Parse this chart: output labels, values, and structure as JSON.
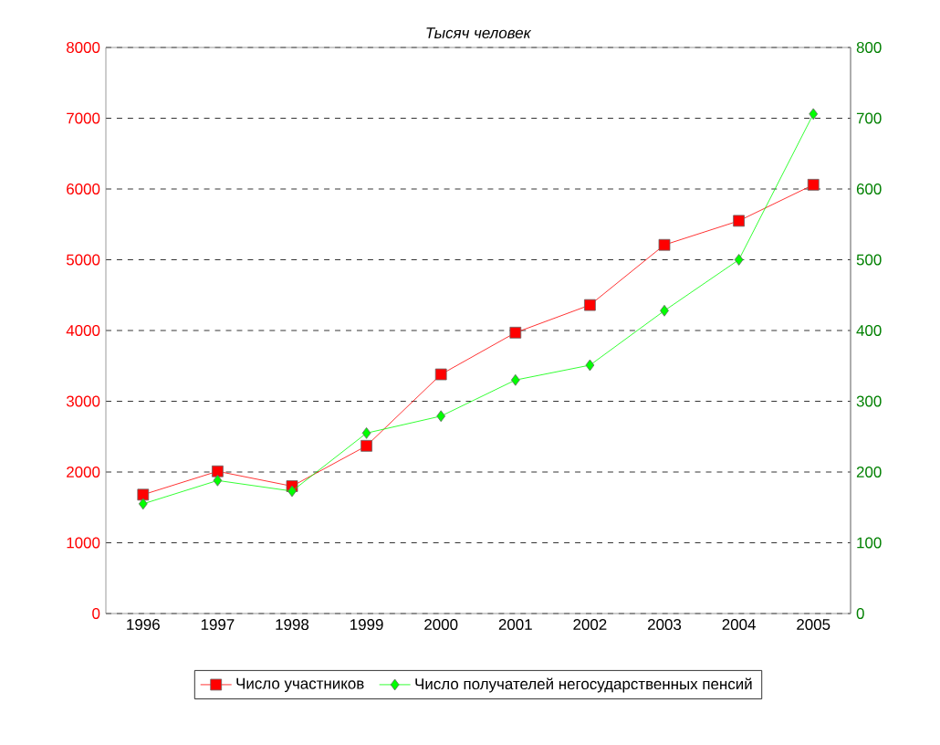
{
  "chart_data": {
    "type": "line",
    "title": "*Тысяч человек*",
    "categories": [
      "1996",
      "1997",
      "1998",
      "1999",
      "2000",
      "2001",
      "2002",
      "2003",
      "2004",
      "2005"
    ],
    "series": [
      {
        "name": "Число участников",
        "color": "#ff0000",
        "marker": "square",
        "values": [
          1680,
          2010,
          1800,
          2370,
          3380,
          3970,
          4360,
          5210,
          5550,
          6060
        ]
      },
      {
        "name": "Число получателей  негосударственных пенсий",
        "color": "#00ff00",
        "marker": "diamond",
        "axis": "y2",
        "values": [
          155,
          188,
          173,
          255,
          279,
          330,
          351,
          428,
          500,
          706
        ]
      }
    ],
    "ylim": [
      0,
      8000
    ],
    "yticks": [
      0,
      1000,
      2000,
      3000,
      4000,
      5000,
      6000,
      7000,
      8000
    ],
    "y2lim": [
      0,
      800
    ],
    "y2ticks": [
      0,
      100,
      200,
      300,
      400,
      500,
      600,
      700,
      800
    ],
    "grid": "y",
    "legend": "bottom"
  }
}
